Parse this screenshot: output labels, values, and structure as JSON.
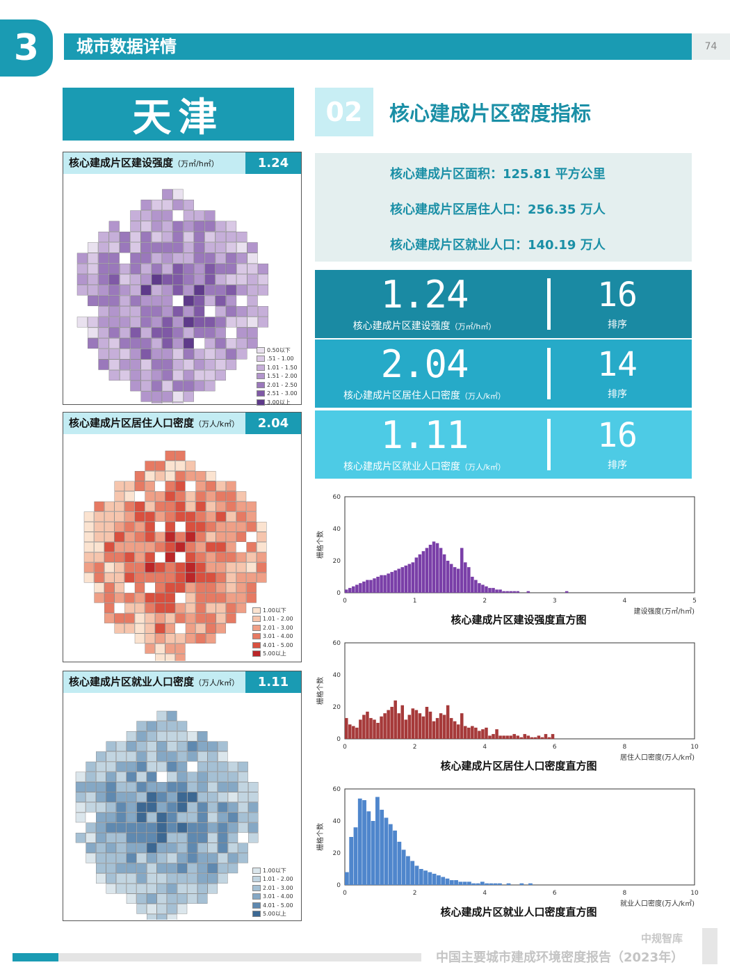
{
  "header": {
    "section_number": "3",
    "section_title": "城市数据详情",
    "page_number": "74"
  },
  "city": "天津",
  "subsection": {
    "number": "02",
    "title": "核心建成片区密度指标"
  },
  "summary": [
    "核心建成片区面积：125.81 平方公里",
    "核心建成片区居住人口：256.35 万人",
    "核心建成片区就业人口：140.19 万人"
  ],
  "metrics": [
    {
      "value": "1.24",
      "label": "核心建成片区建设强度",
      "unit": "（万㎡/h㎡）",
      "rank": "16",
      "rank_label": "排序",
      "color": "#1a8aa3"
    },
    {
      "value": "2.04",
      "label": "核心建成片区居住人口密度",
      "unit": "（万人/k㎡）",
      "rank": "14",
      "rank_label": "排序",
      "color": "#26aac8"
    },
    {
      "value": "1.11",
      "label": "核心建成片区就业人口密度",
      "unit": "（万人/k㎡）",
      "rank": "16",
      "rank_label": "排序",
      "color": "#4dcbe5"
    }
  ],
  "map_panels": [
    {
      "title": "核心建成片区建设强度",
      "unit": "（万㎡/h㎡）",
      "value": "1.24",
      "legend": [
        "0.50以下",
        ".51 - 1.00",
        "1.01 - 1.50",
        "1.51 - 2.00",
        "2.01 - 2.50",
        "2.51 - 3.00",
        "3.00以上"
      ],
      "colors": [
        "#e9e1ef",
        "#d9c8e5",
        "#c6afd9",
        "#b295cc",
        "#9a78bb",
        "#7f59a6",
        "#5e3a8a"
      ]
    },
    {
      "title": "核心建成片区居住人口密度",
      "unit": "（万人/k㎡）",
      "value": "2.04",
      "legend": [
        "1.00以下",
        "1.01 - 2.00",
        "2.01 - 3.00",
        "3.01 - 4.00",
        "4.01 - 5.00",
        "5.00以上"
      ],
      "colors": [
        "#fbe3d0",
        "#f6c5ad",
        "#ef9f86",
        "#e67a63",
        "#d9503f",
        "#bb2628"
      ]
    },
    {
      "title": "核心建成片区就业人口密度",
      "unit": "（万人/k㎡）",
      "value": "1.11",
      "legend": [
        "1.00以下",
        "1.01 - 2.00",
        "2.01 - 3.00",
        "3.01 - 4.00",
        "4.01 - 5.00",
        "5.00以上"
      ],
      "colors": [
        "#dbe6ec",
        "#c2d5e1",
        "#a5c0d4",
        "#85a8c5",
        "#5f89b0",
        "#3c6893"
      ]
    }
  ],
  "chart_data": [
    {
      "type": "bar",
      "title": "核心建成片区建设强度直方图",
      "xlabel": "建设强度(万㎡/h㎡)",
      "ylabel": "栅格个数",
      "xlim": [
        0,
        5
      ],
      "ylim": [
        0,
        60
      ],
      "xticks": [
        "0",
        "1",
        "2",
        "3",
        "4",
        "5"
      ],
      "yticks": [
        "0",
        "20",
        "40",
        "60"
      ],
      "bin_width": 0.05,
      "color": "#7a3fa8",
      "values": [
        2,
        3,
        4,
        5,
        6,
        7,
        8,
        8,
        9,
        10,
        11,
        11,
        12,
        13,
        14,
        15,
        16,
        17,
        18,
        19,
        22,
        24,
        26,
        28,
        30,
        32,
        31,
        28,
        24,
        20,
        18,
        16,
        15,
        28,
        19,
        16,
        10,
        8,
        6,
        5,
        4,
        3,
        3,
        2,
        2,
        1,
        1,
        1,
        1,
        1,
        0,
        0,
        1,
        0,
        0,
        0,
        0,
        0,
        0,
        0,
        0,
        0,
        0,
        1
      ]
    },
    {
      "type": "bar",
      "title": "核心建成片区居住人口密度直方图",
      "xlabel": "居住人口密度(万人/k㎡)",
      "ylabel": "栅格个数",
      "xlim": [
        0,
        10
      ],
      "ylim": [
        0,
        60
      ],
      "xticks": [
        "0",
        "2",
        "4",
        "6",
        "8",
        "10"
      ],
      "yticks": [
        "0",
        "20",
        "40",
        "60"
      ],
      "bin_width": 0.1,
      "color": "#a63a3a",
      "values": [
        13,
        9,
        8,
        7,
        12,
        15,
        17,
        13,
        12,
        10,
        14,
        16,
        18,
        20,
        24,
        16,
        21,
        12,
        15,
        19,
        18,
        16,
        14,
        20,
        17,
        11,
        13,
        16,
        15,
        21,
        13,
        11,
        9,
        16,
        8,
        7,
        8,
        7,
        5,
        6,
        7,
        2,
        3,
        6,
        2,
        2,
        2,
        2,
        3,
        2,
        1,
        3,
        2,
        1,
        1,
        2,
        1,
        3,
        1,
        3
      ]
    },
    {
      "type": "bar",
      "title": "核心建成片区就业人口密度直方图",
      "xlabel": "就业人口密度(万人/k㎡)",
      "ylabel": "栅格个数",
      "xlim": [
        0,
        10
      ],
      "ylim": [
        0,
        60
      ],
      "xticks": [
        "0",
        "2",
        "4",
        "6",
        "8",
        "10"
      ],
      "yticks": [
        "0",
        "20",
        "40",
        "60"
      ],
      "bin_width": 0.125,
      "color": "#4f86cc",
      "values": [
        8,
        30,
        36,
        54,
        53,
        46,
        40,
        55,
        47,
        42,
        38,
        34,
        27,
        22,
        18,
        15,
        12,
        10,
        9,
        8,
        7,
        6,
        5,
        4,
        3,
        3,
        2,
        2,
        2,
        1,
        1,
        2,
        1,
        1,
        1,
        1,
        0,
        1,
        0,
        0,
        1,
        0,
        1,
        0,
        0,
        0,
        0,
        0,
        0,
        0,
        0,
        0,
        0,
        0,
        0,
        0,
        0,
        0,
        0,
        0,
        0,
        0,
        0,
        0,
        0,
        0,
        0,
        0,
        0,
        0,
        0,
        0,
        0,
        0,
        0,
        0,
        0,
        0,
        0,
        0
      ]
    }
  ],
  "footer": {
    "brand": "中规智库",
    "report": "中国主要城市建成环境密度报告（2023年）"
  }
}
